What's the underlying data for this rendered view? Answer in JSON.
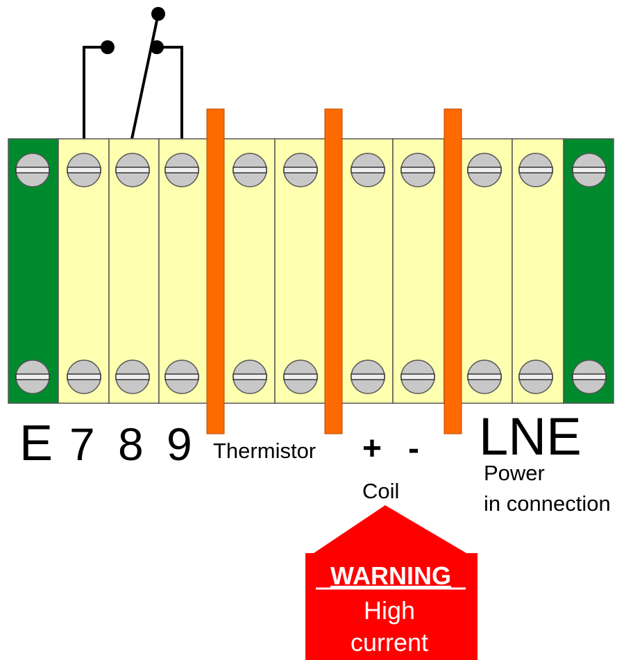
{
  "terminal_labels": [
    "E",
    "7",
    "8",
    "9"
  ],
  "thermistor": "Thermistor",
  "coil_labels": [
    "+",
    "-"
  ],
  "coil": "Coil",
  "power_labels": "LNE",
  "power_text": [
    "Power",
    "in connection"
  ],
  "warning": {
    "title": "WARNING",
    "lines": [
      "High",
      "current"
    ]
  }
}
